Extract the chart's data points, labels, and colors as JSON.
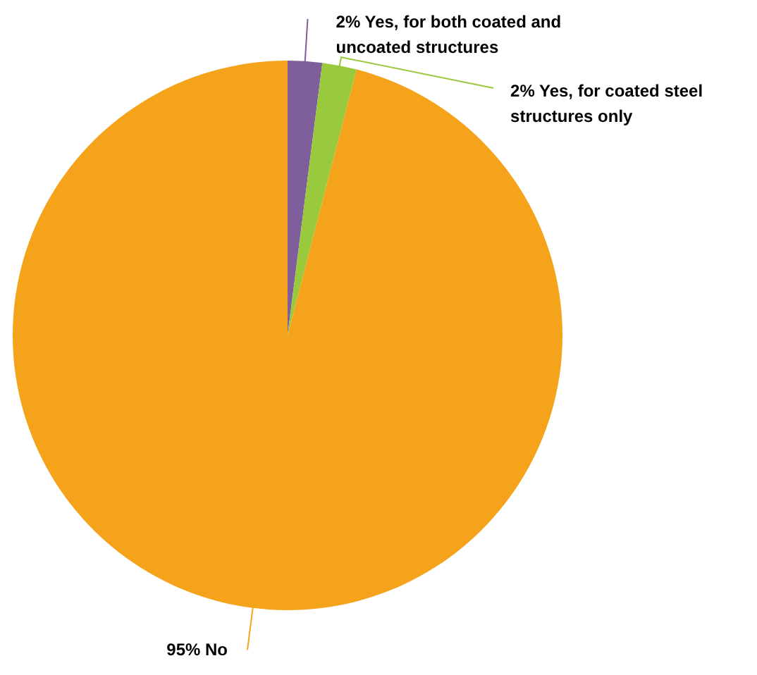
{
  "chart_data": {
    "type": "pie",
    "categories": [
      "Yes, for both coated and uncoated structures",
      "Yes, for coated steel structures only",
      "No"
    ],
    "values": [
      2,
      2,
      95
    ],
    "value_labels": [
      "2%",
      "2%",
      "95%"
    ],
    "colors": [
      "#7f5f9b",
      "#99c93c",
      "#f5a31a"
    ]
  }
}
